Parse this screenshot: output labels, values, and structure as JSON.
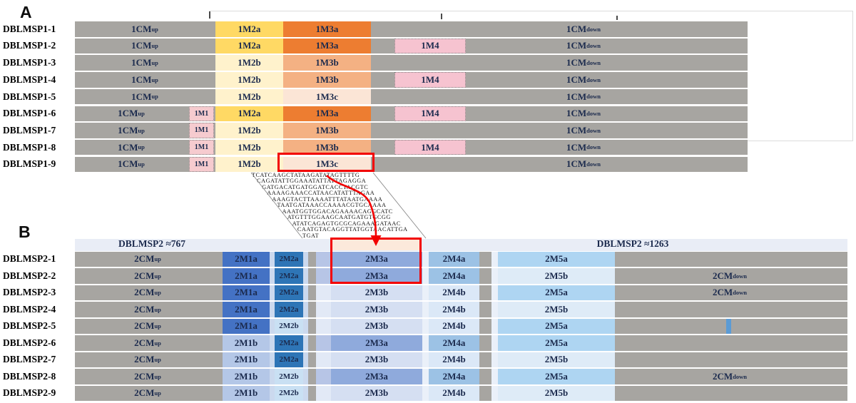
{
  "panel_a": {
    "title": "A",
    "rows": [
      {
        "label": "DBLMSP1-1",
        "segments": [
          {
            "slot": "cm_up_long",
            "text": "1CM",
            "sub": "up"
          },
          {
            "slot": "m2",
            "fill": "m2a",
            "text": "1M2a"
          },
          {
            "slot": "m3",
            "fill": "m3a",
            "text": "1M3a"
          },
          {
            "slot": "cm_down",
            "text": "1CM",
            "sub": "down"
          }
        ]
      },
      {
        "label": "DBLMSP1-2",
        "segments": [
          {
            "slot": "cm_up_long",
            "text": "1CM",
            "sub": "up"
          },
          {
            "slot": "m2",
            "fill": "m2a",
            "text": "1M2a"
          },
          {
            "slot": "m3",
            "fill": "m3a",
            "text": "1M3a"
          },
          {
            "slot": "m4",
            "fill": "m4_pink",
            "text": "1M4"
          },
          {
            "slot": "cm_down",
            "text": "1CM",
            "sub": "down"
          }
        ]
      },
      {
        "label": "DBLMSP1-3",
        "segments": [
          {
            "slot": "cm_up_long",
            "text": "1CM",
            "sub": "up"
          },
          {
            "slot": "m2",
            "fill": "m2b",
            "text": "1M2b"
          },
          {
            "slot": "m3",
            "fill": "m3b",
            "text": "1M3b"
          },
          {
            "slot": "cm_down",
            "text": "1CM",
            "sub": "down"
          }
        ]
      },
      {
        "label": "DBLMSP1-4",
        "segments": [
          {
            "slot": "cm_up_long",
            "text": "1CM",
            "sub": "up"
          },
          {
            "slot": "m2",
            "fill": "m2b",
            "text": "1M2b"
          },
          {
            "slot": "m3",
            "fill": "m3b",
            "text": "1M3b"
          },
          {
            "slot": "m4",
            "fill": "m4_pink",
            "text": "1M4"
          },
          {
            "slot": "cm_down",
            "text": "1CM",
            "sub": "down"
          }
        ]
      },
      {
        "label": "DBLMSP1-5",
        "segments": [
          {
            "slot": "cm_up_long",
            "text": "1CM",
            "sub": "up"
          },
          {
            "slot": "m2",
            "fill": "m2b",
            "text": "1M2b"
          },
          {
            "slot": "m3",
            "fill": "m3c",
            "text": "1M3c"
          },
          {
            "slot": "cm_down",
            "text": "1CM",
            "sub": "down"
          }
        ]
      },
      {
        "label": "DBLMSP1-6",
        "segments": [
          {
            "slot": "cm_up_short",
            "text": "1CM",
            "sub": "up"
          },
          {
            "slot": "m1",
            "fill": "m1_pink",
            "text": "1M1"
          },
          {
            "slot": "m2",
            "fill": "m2a",
            "text": "1M2a"
          },
          {
            "slot": "m3",
            "fill": "m3a",
            "text": "1M3a"
          },
          {
            "slot": "m4",
            "fill": "m4_pink",
            "text": "1M4"
          },
          {
            "slot": "cm_down",
            "text": "1CM",
            "sub": "down"
          }
        ]
      },
      {
        "label": "DBLMSP1-7",
        "segments": [
          {
            "slot": "cm_up_short",
            "text": "1CM",
            "sub": "up"
          },
          {
            "slot": "m1",
            "fill": "m1_pink",
            "text": "1M1"
          },
          {
            "slot": "m2",
            "fill": "m2b",
            "text": "1M2b"
          },
          {
            "slot": "m3",
            "fill": "m3b",
            "text": "1M3b"
          },
          {
            "slot": "cm_down",
            "text": "1CM",
            "sub": "down"
          }
        ]
      },
      {
        "label": "DBLMSP1-8",
        "segments": [
          {
            "slot": "cm_up_short",
            "text": "1CM",
            "sub": "up"
          },
          {
            "slot": "m1",
            "fill": "m1_pink",
            "text": "1M1"
          },
          {
            "slot": "m2",
            "fill": "m2b",
            "text": "1M2b"
          },
          {
            "slot": "m3",
            "fill": "m3b",
            "text": "1M3b"
          },
          {
            "slot": "m4",
            "fill": "m4_pink",
            "text": "1M4"
          },
          {
            "slot": "cm_down",
            "text": "1CM",
            "sub": "down"
          }
        ]
      },
      {
        "label": "DBLMSP1-9",
        "segments": [
          {
            "slot": "cm_up_short",
            "text": "1CM",
            "sub": "up"
          },
          {
            "slot": "m1",
            "fill": "m1_pink",
            "text": "1M1"
          },
          {
            "slot": "m2",
            "fill": "m2b",
            "text": "1M2b"
          },
          {
            "slot": "m3",
            "fill": "m3c",
            "text": "1M3c"
          },
          {
            "slot": "cm_down",
            "text": "1CM",
            "sub": "down"
          }
        ]
      }
    ]
  },
  "panel_b": {
    "title": "B",
    "header": {
      "left_label": "DBLMSP2 ≈767",
      "right_label": "DBLMSP2 ≈1263"
    },
    "rows": [
      {
        "label": "DBLMSP2-1",
        "segments": [
          {
            "slot": "cm_up",
            "text": "2CM",
            "sub": "up"
          },
          {
            "slot": "m1",
            "fill": "b_m1a",
            "text": "2M1a"
          },
          {
            "slot": "s2l",
            "fill": "strip2"
          },
          {
            "slot": "m2",
            "fill": "b_m2a",
            "text": "2M2a"
          },
          {
            "slot": "s2r",
            "fill": "strip2"
          },
          {
            "slot": "s3",
            "fill": "s3a"
          },
          {
            "slot": "m3",
            "fill": "b_m3a",
            "text": "2M3a"
          },
          {
            "slot": "s4",
            "fill": "strip45"
          },
          {
            "slot": "m4",
            "fill": "b_m4a",
            "text": "2M4a"
          },
          {
            "slot": "s5",
            "fill": "strip45"
          },
          {
            "slot": "m5",
            "fill": "b_m5a",
            "text": "2M5a"
          },
          {
            "slot": "stripe",
            "fill": "stripe_dashed"
          }
        ]
      },
      {
        "label": "DBLMSP2-2",
        "segments": [
          {
            "slot": "cm_up",
            "text": "2CM",
            "sub": "up"
          },
          {
            "slot": "m1",
            "fill": "b_m1a",
            "text": "2M1a"
          },
          {
            "slot": "s2l",
            "fill": "strip2"
          },
          {
            "slot": "m2",
            "fill": "b_m2a",
            "text": "2M2a"
          },
          {
            "slot": "s2r",
            "fill": "strip2"
          },
          {
            "slot": "s3",
            "fill": "s3a"
          },
          {
            "slot": "m3",
            "fill": "b_m3a",
            "text": "2M3a"
          },
          {
            "slot": "s4",
            "fill": "strip45"
          },
          {
            "slot": "m4",
            "fill": "b_m4a",
            "text": "2M4a"
          },
          {
            "slot": "s5",
            "fill": "strip45"
          },
          {
            "slot": "m5",
            "fill": "b_m5b",
            "text": "2M5b"
          },
          {
            "slot": "cm_down",
            "text": "2CM",
            "sub": "down"
          }
        ]
      },
      {
        "label": "DBLMSP2-3",
        "segments": [
          {
            "slot": "cm_up",
            "text": "2CM",
            "sub": "up"
          },
          {
            "slot": "m1",
            "fill": "b_m1a",
            "text": "2M1a"
          },
          {
            "slot": "s2l",
            "fill": "strip2"
          },
          {
            "slot": "m2",
            "fill": "b_m2a",
            "text": "2M2a"
          },
          {
            "slot": "s2r",
            "fill": "strip2"
          },
          {
            "slot": "s3",
            "fill": "s3b"
          },
          {
            "slot": "m3",
            "fill": "b_m3b",
            "text": "2M3b"
          },
          {
            "slot": "s4",
            "fill": "strip45"
          },
          {
            "slot": "m4",
            "fill": "b_m4b",
            "text": "2M4b"
          },
          {
            "slot": "s5",
            "fill": "strip45"
          },
          {
            "slot": "m5",
            "fill": "b_m5a",
            "text": "2M5a"
          },
          {
            "slot": "cm_down",
            "text": "2CM",
            "sub": "down"
          }
        ]
      },
      {
        "label": "DBLMSP2-4",
        "segments": [
          {
            "slot": "cm_up",
            "text": "2CM",
            "sub": "up"
          },
          {
            "slot": "m1",
            "fill": "b_m1a",
            "text": "2M1a"
          },
          {
            "slot": "s2l",
            "fill": "strip2"
          },
          {
            "slot": "m2",
            "fill": "b_m2a",
            "text": "2M2a"
          },
          {
            "slot": "s2r",
            "fill": "strip2"
          },
          {
            "slot": "s3",
            "fill": "s3b"
          },
          {
            "slot": "m3",
            "fill": "b_m3b",
            "text": "2M3b"
          },
          {
            "slot": "s4",
            "fill": "strip45"
          },
          {
            "slot": "m4",
            "fill": "b_m4b",
            "text": "2M4b"
          },
          {
            "slot": "s5",
            "fill": "strip45"
          },
          {
            "slot": "m5",
            "fill": "b_m5b",
            "text": "2M5b"
          },
          {
            "slot": "stripe",
            "fill": "stripe_dashed"
          }
        ]
      },
      {
        "label": "DBLMSP2-5",
        "segments": [
          {
            "slot": "cm_up",
            "text": "2CM",
            "sub": "up"
          },
          {
            "slot": "m1",
            "fill": "b_m1a",
            "text": "2M1a"
          },
          {
            "slot": "s2l",
            "fill": "strip2"
          },
          {
            "slot": "m2",
            "fill": "b_m2b",
            "text": "2M2b"
          },
          {
            "slot": "s2r",
            "fill": "strip2"
          },
          {
            "slot": "s3",
            "fill": "s3b"
          },
          {
            "slot": "m3",
            "fill": "b_m3b",
            "text": "2M3b"
          },
          {
            "slot": "s4",
            "fill": "strip45"
          },
          {
            "slot": "m4",
            "fill": "b_m4b",
            "text": "2M4b"
          },
          {
            "slot": "s5",
            "fill": "strip45"
          },
          {
            "slot": "m5",
            "fill": "b_m5a",
            "text": "2M5a"
          },
          {
            "slot": "stripe",
            "fill": "stripe_solid"
          }
        ]
      },
      {
        "label": "DBLMSP2-6",
        "segments": [
          {
            "slot": "cm_up",
            "text": "2CM",
            "sub": "up"
          },
          {
            "slot": "m1",
            "fill": "b_m1b",
            "text": "2M1b"
          },
          {
            "slot": "s2l",
            "fill": "strip2"
          },
          {
            "slot": "m2",
            "fill": "b_m2a",
            "text": "2M2a"
          },
          {
            "slot": "s2r",
            "fill": "strip2"
          },
          {
            "slot": "s3",
            "fill": "s3a"
          },
          {
            "slot": "m3",
            "fill": "b_m3a",
            "text": "2M3a"
          },
          {
            "slot": "s4",
            "fill": "strip45"
          },
          {
            "slot": "m4",
            "fill": "b_m4a",
            "text": "2M4a"
          },
          {
            "slot": "s5",
            "fill": "strip45"
          },
          {
            "slot": "m5",
            "fill": "b_m5a",
            "text": "2M5a"
          },
          {
            "slot": "stripe",
            "fill": "stripe_dashed"
          }
        ]
      },
      {
        "label": "DBLMSP2-7",
        "segments": [
          {
            "slot": "cm_up",
            "text": "2CM",
            "sub": "up"
          },
          {
            "slot": "m1",
            "fill": "b_m1b",
            "text": "2M1b"
          },
          {
            "slot": "s2l",
            "fill": "strip2"
          },
          {
            "slot": "m2",
            "fill": "b_m2a",
            "text": "2M2a"
          },
          {
            "slot": "s2r",
            "fill": "strip2"
          },
          {
            "slot": "s3",
            "fill": "s3b"
          },
          {
            "slot": "m3",
            "fill": "b_m3b",
            "text": "2M3b"
          },
          {
            "slot": "s4",
            "fill": "strip45"
          },
          {
            "slot": "m4",
            "fill": "b_m4b",
            "text": "2M4b"
          },
          {
            "slot": "s5",
            "fill": "strip45"
          },
          {
            "slot": "m5",
            "fill": "b_m5b",
            "text": "2M5b"
          },
          {
            "slot": "stripe",
            "fill": "stripe_dashed"
          }
        ]
      },
      {
        "label": "DBLMSP2-8",
        "segments": [
          {
            "slot": "cm_up",
            "text": "2CM",
            "sub": "up"
          },
          {
            "slot": "m1",
            "fill": "b_m1b",
            "text": "2M1b"
          },
          {
            "slot": "s2l",
            "fill": "strip2"
          },
          {
            "slot": "m2",
            "fill": "b_m2b",
            "text": "2M2b"
          },
          {
            "slot": "s2r",
            "fill": "strip2"
          },
          {
            "slot": "s3",
            "fill": "s3a"
          },
          {
            "slot": "m3",
            "fill": "b_m3a",
            "text": "2M3a"
          },
          {
            "slot": "s4",
            "fill": "strip45"
          },
          {
            "slot": "m4",
            "fill": "b_m4a",
            "text": "2M4a"
          },
          {
            "slot": "s5",
            "fill": "strip45"
          },
          {
            "slot": "m5",
            "fill": "b_m5a",
            "text": "2M5a"
          },
          {
            "slot": "cm_down",
            "text": "2CM",
            "sub": "down"
          }
        ]
      },
      {
        "label": "DBLMSP2-9",
        "segments": [
          {
            "slot": "cm_up",
            "text": "2CM",
            "sub": "up"
          },
          {
            "slot": "m1",
            "fill": "b_m1b",
            "text": "2M1b"
          },
          {
            "slot": "s2l",
            "fill": "strip2"
          },
          {
            "slot": "m2",
            "fill": "b_m2b",
            "text": "2M2b"
          },
          {
            "slot": "s2r",
            "fill": "strip2"
          },
          {
            "slot": "s3",
            "fill": "s3b"
          },
          {
            "slot": "m3",
            "fill": "b_m3b",
            "text": "2M3b"
          },
          {
            "slot": "s4",
            "fill": "strip45"
          },
          {
            "slot": "m4",
            "fill": "b_m4b",
            "text": "2M4b"
          },
          {
            "slot": "s5",
            "fill": "strip45"
          },
          {
            "slot": "m5",
            "fill": "b_m5b",
            "text": "2M5b"
          },
          {
            "slot": "stripe",
            "fill": "stripe_dashed"
          }
        ]
      }
    ]
  },
  "dna_sequence": {
    "lines": [
      "TCATCAAGCTATAAGATATAGTTTTG",
      "CAGATATTGGAAATATTATTAGAGGA",
      "GATGACATGATGGATCACCTACGTC",
      "AAAAGAAACCATAACATATTTAGAA",
      "AAAGTACTTAAAATTTATAATGAAAA",
      "TAATGATAAACCAAAACGTGCAAAA",
      "AAATGGTGGACAGAAAACAGGCATC",
      "ATGTTTGGAAGCAATGATGTGCGG",
      "ATATCAGAGTGCGCAGAAAGATAAC",
      "CAATGTACAGGTTATGGTAACATTGA",
      "TGAT"
    ]
  },
  "colors": {
    "bar_gray": "#A7A5A1",
    "m2a": "#FFD964",
    "m2b": "#FFF2CC",
    "m3a": "#ED7D31",
    "m3b": "#F4B183",
    "m3c": "#FBE5D6",
    "m1_pink": "#F6CBCF",
    "m4_pink": "#F6C3D0",
    "header_band": "#E9EDF6",
    "b_m1a": "#4472C4",
    "b_m1b": "#B4C7E7",
    "b_m2a": "#2E75B6",
    "b_m2b": "#C9E0F3",
    "strip2": "#CBD9EE",
    "s3a": "#B7C5E6",
    "s3b": "#E2E9F6",
    "strip45": "#EAF0F9",
    "b_m3a": "#8FAADC",
    "b_m3b": "#D5DFF2",
    "b_m4a": "#9CC2E5",
    "b_m4b": "#DBE8F7",
    "b_m5a": "#AED5F2",
    "b_m5b": "#DEEBF7",
    "stripe_solid": "#5B9BD5",
    "stripe_dashed": "#C4DCF1",
    "red_highlight": "#F20000",
    "label_navy": "#1B2A4D",
    "bracket_gray": "#DCDCDC"
  }
}
